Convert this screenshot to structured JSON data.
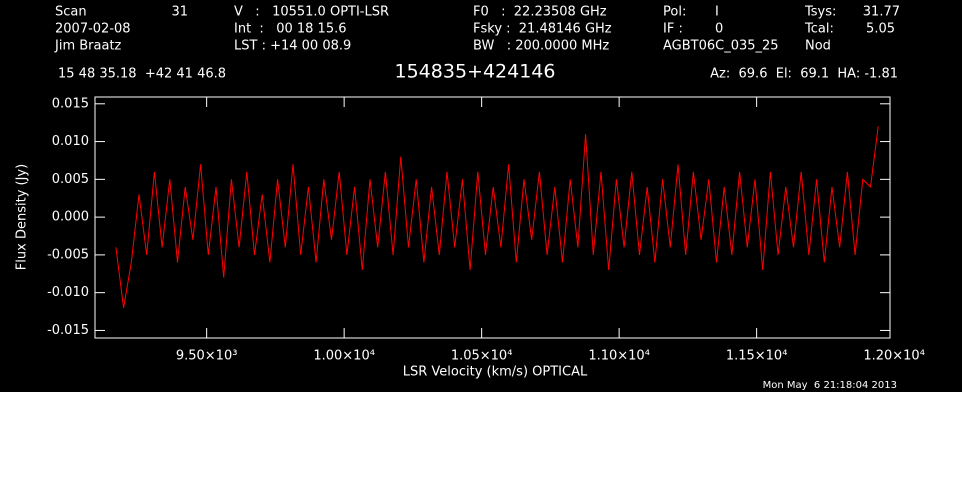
{
  "chart_data": {
    "type": "line",
    "header": [
      "Scan",
      "31",
      "V   :   10551.0 OPTI-LSR",
      "F0   :  22.23508 GHz",
      "Pol:",
      "I",
      "Tsys:",
      "31.77",
      "2007-02-08",
      "Int  :   00 18 15.6",
      "Fsky :  21.48146 GHz",
      "IF :",
      "0",
      "Tcal:",
      "5.05",
      "Jim Braatz",
      "LST : +14 00 08.9",
      "BW   : 200.0000 MHz",
      "AGBT06C_035_25",
      "Nod",
      "15 48 35.18  +42 41 46.8",
      "Az:  69.6  El:  69.1  HA: -1.81"
    ],
    "title": "154835+424146",
    "footer": "Mon May  6 21:18:04 2013",
    "x_label": "LSR Velocity (km/s) OPTICAL",
    "y_label": "Flux Density (Jy)",
    "xlim": [
      9094,
      11985
    ],
    "ylim": [
      -0.016,
      0.0159
    ],
    "xticks": [
      {
        "value": 9500,
        "label": "9.50×10³"
      },
      {
        "value": 10000,
        "label": "1.00×10⁴"
      },
      {
        "value": 10500,
        "label": "1.05×10⁴"
      },
      {
        "value": 11000,
        "label": "1.10×10⁴"
      },
      {
        "value": 11500,
        "label": "1.15×10⁴"
      },
      {
        "value": 12000,
        "label": "1.20×10⁴"
      }
    ],
    "yticks": [
      {
        "value": -0.015,
        "label": "-0.015"
      },
      {
        "value": -0.01,
        "label": "-0.010"
      },
      {
        "value": -0.005,
        "label": "-0.005"
      },
      {
        "value": 0,
        "label": "0.000"
      },
      {
        "value": 0.005,
        "label": "0.005"
      },
      {
        "value": 0.01,
        "label": "0.010"
      },
      0.015
    ],
    "x": [
      9170,
      9198,
      9226,
      9254,
      9282,
      9310,
      9338,
      9366,
      9394,
      9422,
      9450,
      9478,
      9506,
      9534,
      9562,
      9590,
      9618,
      9646,
      9674,
      9702,
      9730,
      9758,
      9786,
      9814,
      9842,
      9870,
      9898,
      9926,
      9954,
      9982,
      10010,
      10038,
      10066,
      10094,
      10122,
      10150,
      10178,
      10206,
      10234,
      10262,
      10290,
      10318,
      10346,
      10374,
      10402,
      10430,
      10458,
      10486,
      10514,
      10542,
      10570,
      10598,
      10626,
      10654,
      10682,
      10710,
      10738,
      10766,
      10794,
      10822,
      10850,
      10878,
      10906,
      10934,
      10962,
      10990,
      11018,
      11046,
      11074,
      11102,
      11130,
      11158,
      11186,
      11214,
      11242,
      11270,
      11298,
      11326,
      11354,
      11382,
      11410,
      11438,
      11466,
      11494,
      11522,
      11550,
      11578,
      11606,
      11634,
      11662,
      11690,
      11718,
      11746,
      11774,
      11802,
      11830,
      11858,
      11886,
      11914,
      11942
    ],
    "series": [
      {
        "color": "#ff0000",
        "values": [
          -0.004,
          -0.012,
          -0.006,
          0.003,
          -0.005,
          0.006,
          -0.004,
          0.005,
          -0.006,
          0.004,
          -0.003,
          0.007,
          -0.005,
          0.004,
          -0.008,
          0.005,
          -0.004,
          0.006,
          -0.005,
          0.003,
          -0.006,
          0.005,
          -0.004,
          0.007,
          -0.005,
          0.004,
          -0.006,
          0.005,
          -0.003,
          0.006,
          -0.005,
          0.004,
          -0.007,
          0.005,
          -0.004,
          0.006,
          -0.005,
          0.008,
          -0.004,
          0.005,
          -0.006,
          0.004,
          -0.005,
          0.006,
          -0.004,
          0.005,
          -0.007,
          0.006,
          -0.005,
          0.004,
          -0.004,
          0.007,
          -0.006,
          0.005,
          -0.003,
          0.006,
          -0.005,
          0.004,
          -0.006,
          0.005,
          -0.004,
          0.011,
          -0.005,
          0.006,
          -0.007,
          0.005,
          -0.004,
          0.006,
          -0.005,
          0.004,
          -0.006,
          0.005,
          -0.004,
          0.007,
          -0.005,
          0.006,
          -0.003,
          0.005,
          -0.006,
          0.004,
          -0.005,
          0.006,
          -0.004,
          0.005,
          -0.007,
          0.006,
          -0.005,
          0.004,
          -0.004,
          0.006,
          -0.005,
          0.005,
          -0.006,
          0.004,
          -0.004,
          0.006,
          -0.005,
          0.005,
          0.004,
          0.012
        ]
      }
    ]
  }
}
